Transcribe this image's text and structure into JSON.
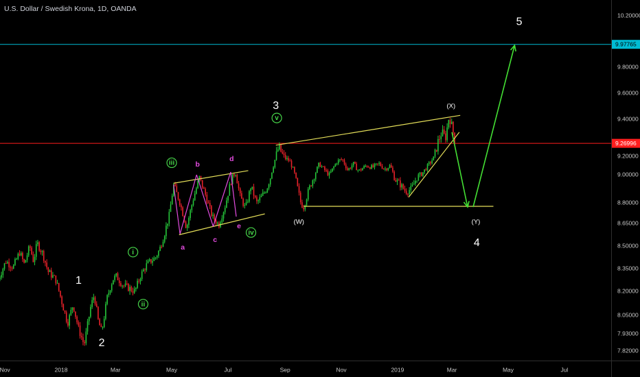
{
  "header": {
    "symbol_title": "U.S. Dollar / Swedish Krona, 1D, OANDA"
  },
  "colors": {
    "background": "#000000",
    "axis_text": "#c8c8c8",
    "bull_candle": "#26c63a",
    "bear_candle": "#e8222a",
    "resistance_line": "#00bcd4",
    "current_price_line": "#ff1e1e",
    "trend_line": "#e6e05a",
    "wave_arrow": "#44e034",
    "minor_wave_label": "#e44ce0",
    "circled_wave": "#47d64a",
    "label_white": "#ffffff"
  },
  "chart_data": {
    "type": "candlestick",
    "title": "U.S. Dollar / Swedish Krona, 1D, OANDA",
    "xlabel": "",
    "ylabel": "",
    "x_ticks": [
      "Nov",
      "2018",
      "Mar",
      "May",
      "Jul",
      "Sep",
      "Nov",
      "2019",
      "Mar",
      "May",
      "Jul"
    ],
    "y_ticks": [
      "10.20000",
      "9.80000",
      "9.60000",
      "9.40000",
      "9.20000",
      "9.00000",
      "8.80000",
      "8.65000",
      "8.50000",
      "8.35000",
      "8.20000",
      "8.05000",
      "7.93000",
      "7.82000"
    ],
    "price_badges": [
      {
        "value": "9.97765",
        "kind": "horizontal-line"
      },
      {
        "value": "9.26996",
        "kind": "current-price"
      }
    ],
    "horizontal_lines": [
      9.97765,
      9.26996
    ],
    "grid": false,
    "price_path": [
      [
        "2017-10-25",
        8.28
      ],
      [
        "2017-11-02",
        8.4
      ],
      [
        "2017-11-10",
        8.36
      ],
      [
        "2017-11-17",
        8.46
      ],
      [
        "2017-11-22",
        8.38
      ],
      [
        "2017-11-28",
        8.5
      ],
      [
        "2017-12-02",
        8.4
      ],
      [
        "2017-12-06",
        8.52
      ],
      [
        "2017-12-12",
        8.45
      ],
      [
        "2017-12-18",
        8.33
      ],
      [
        "2017-12-26",
        8.28
      ],
      [
        "2018-01-02",
        8.13
      ],
      [
        "2018-01-08",
        8.0
      ],
      [
        "2018-01-14",
        8.12
      ],
      [
        "2018-01-20",
        7.96
      ],
      [
        "2018-01-26",
        7.86
      ],
      [
        "2018-02-02",
        8.1
      ],
      [
        "2018-02-06",
        8.18
      ],
      [
        "2018-02-10",
        8.02
      ],
      [
        "2018-02-14",
        7.94
      ],
      [
        "2018-02-20",
        8.16
      ],
      [
        "2018-02-26",
        8.28
      ],
      [
        "2018-03-02",
        8.3
      ],
      [
        "2018-03-09",
        8.24
      ],
      [
        "2018-03-16",
        8.22
      ],
      [
        "2018-03-22",
        8.2
      ],
      [
        "2018-03-28",
        8.3
      ],
      [
        "2018-04-03",
        8.37
      ],
      [
        "2018-04-08",
        8.4
      ],
      [
        "2018-04-13",
        8.42
      ],
      [
        "2018-04-18",
        8.48
      ],
      [
        "2018-04-23",
        8.58
      ],
      [
        "2018-04-28",
        8.7
      ],
      [
        "2018-05-03",
        8.93
      ],
      [
        "2018-05-10",
        8.8
      ],
      [
        "2018-05-17",
        8.62
      ],
      [
        "2018-05-24",
        8.82
      ],
      [
        "2018-05-31",
        8.98
      ],
      [
        "2018-06-07",
        8.85
      ],
      [
        "2018-06-14",
        8.7
      ],
      [
        "2018-06-21",
        8.64
      ],
      [
        "2018-06-28",
        8.78
      ],
      [
        "2018-07-04",
        8.95
      ],
      [
        "2018-07-09",
        9.03
      ],
      [
        "2018-07-14",
        8.85
      ],
      [
        "2018-07-20",
        8.76
      ],
      [
        "2018-07-26",
        8.92
      ],
      [
        "2018-08-01",
        8.8
      ],
      [
        "2018-08-06",
        8.84
      ],
      [
        "2018-08-12",
        8.9
      ],
      [
        "2018-08-16",
        8.98
      ],
      [
        "2018-08-22",
        9.2
      ],
      [
        "2018-08-25",
        9.25
      ],
      [
        "2018-09-01",
        9.18
      ],
      [
        "2018-09-06",
        9.15
      ],
      [
        "2018-09-10",
        9.05
      ],
      [
        "2018-09-14",
        8.92
      ],
      [
        "2018-09-18",
        8.8
      ],
      [
        "2018-09-21",
        8.77
      ],
      [
        "2018-09-27",
        8.9
      ],
      [
        "2018-10-03",
        9.0
      ],
      [
        "2018-10-08",
        9.12
      ],
      [
        "2018-10-13",
        9.06
      ],
      [
        "2018-10-19",
        9.0
      ],
      [
        "2018-10-27",
        9.14
      ],
      [
        "2018-11-02",
        9.17
      ],
      [
        "2018-11-08",
        9.05
      ],
      [
        "2018-11-14",
        9.12
      ],
      [
        "2018-11-20",
        9.04
      ],
      [
        "2018-11-28",
        9.1
      ],
      [
        "2018-12-05",
        9.08
      ],
      [
        "2018-12-12",
        9.12
      ],
      [
        "2018-12-18",
        9.06
      ],
      [
        "2018-12-24",
        9.1
      ],
      [
        "2018-12-29",
        8.97
      ],
      [
        "2019-01-04",
        8.93
      ],
      [
        "2019-01-10",
        8.88
      ],
      [
        "2019-01-16",
        8.9
      ],
      [
        "2019-01-22",
        8.98
      ],
      [
        "2019-01-28",
        9.02
      ],
      [
        "2019-02-03",
        9.1
      ],
      [
        "2019-02-09",
        9.18
      ],
      [
        "2019-02-14",
        9.28
      ],
      [
        "2019-02-18",
        9.33
      ],
      [
        "2019-02-22",
        9.3
      ],
      [
        "2019-02-26",
        9.42
      ],
      [
        "2019-03-01",
        9.36
      ],
      [
        "2019-03-05",
        9.27
      ]
    ],
    "trend_lines": [
      {
        "name": "wave-3-to-X-upper",
        "from": [
          "2018-08-22",
          9.26
        ],
        "to": [
          "2019-03-10",
          9.43
        ]
      },
      {
        "name": "W-to-Y-lower",
        "from": [
          "2018-09-21",
          8.775
        ],
        "to": [
          "2019-04-15",
          8.775
        ]
      },
      {
        "name": "rising-wedge-lower",
        "from": [
          "2019-01-13",
          8.84
        ],
        "to": [
          "2019-03-09",
          9.33
        ]
      },
      {
        "name": "iv-channel-upper",
        "from": [
          "2018-05-03",
          8.94
        ],
        "to": [
          "2018-07-23",
          9.045
        ]
      },
      {
        "name": "iv-channel-lower",
        "from": [
          "2018-05-09",
          8.575
        ],
        "to": [
          "2018-08-10",
          8.72
        ]
      }
    ],
    "minor_waves": [
      {
        "from": [
          "2018-05-03",
          8.93
        ],
        "to": [
          "2018-05-10",
          8.58
        ]
      },
      {
        "from": [
          "2018-05-10",
          8.58
        ],
        "to": [
          "2018-05-28",
          9.0
        ]
      },
      {
        "from": [
          "2018-05-28",
          9.0
        ],
        "to": [
          "2018-06-15",
          8.63
        ]
      },
      {
        "from": [
          "2018-06-15",
          8.63
        ],
        "to": [
          "2018-07-04",
          9.03
        ]
      },
      {
        "from": [
          "2018-07-04",
          9.03
        ],
        "to": [
          "2018-07-10",
          8.7
        ]
      }
    ],
    "projection_arrows": [
      {
        "from": [
          "2019-03-01",
          9.33
        ],
        "to": [
          "2019-03-18",
          8.77
        ]
      },
      {
        "from": [
          "2019-03-24",
          8.77
        ],
        "to": [
          "2019-05-08",
          9.97
        ]
      }
    ],
    "wave_labels": [
      {
        "text": "1",
        "at": [
          "2018-01-20",
          8.27
        ],
        "style": "white"
      },
      {
        "text": "2",
        "at": [
          "2018-02-14",
          7.87
        ],
        "style": "white"
      },
      {
        "text": "3",
        "at": [
          "2018-08-22",
          9.5
        ],
        "style": "white"
      },
      {
        "text": "4",
        "at": [
          "2019-03-28",
          8.52
        ],
        "style": "white"
      },
      {
        "text": "5",
        "at": [
          "2019-05-13",
          10.15
        ],
        "style": "white"
      },
      {
        "text": "(W)",
        "at": [
          "2018-09-16",
          8.66
        ],
        "style": "small-white"
      },
      {
        "text": "(X)",
        "at": [
          "2019-02-28",
          9.5
        ],
        "style": "small-white"
      },
      {
        "text": "(Y)",
        "at": [
          "2019-03-27",
          8.66
        ],
        "style": "small-white"
      },
      {
        "text": "i",
        "at": [
          "2018-03-20",
          8.46
        ],
        "style": "circled"
      },
      {
        "text": "ii",
        "at": [
          "2018-03-31",
          8.12
        ],
        "style": "circled"
      },
      {
        "text": "iii",
        "at": [
          "2018-05-01",
          9.13
        ],
        "style": "circled"
      },
      {
        "text": "iv",
        "at": [
          "2018-07-26",
          8.59
        ],
        "style": "circled"
      },
      {
        "text": "v",
        "at": [
          "2018-08-23",
          9.41
        ],
        "style": "circled"
      },
      {
        "text": "a",
        "at": [
          "2018-05-13",
          8.49
        ],
        "style": "minor"
      },
      {
        "text": "b",
        "at": [
          "2018-05-29",
          9.11
        ],
        "style": "minor"
      },
      {
        "text": "c",
        "at": [
          "2018-06-17",
          8.54
        ],
        "style": "minor"
      },
      {
        "text": "d",
        "at": [
          "2018-07-05",
          9.17
        ],
        "style": "minor"
      },
      {
        "text": "e",
        "at": [
          "2018-07-13",
          8.63
        ],
        "style": "minor"
      }
    ]
  }
}
